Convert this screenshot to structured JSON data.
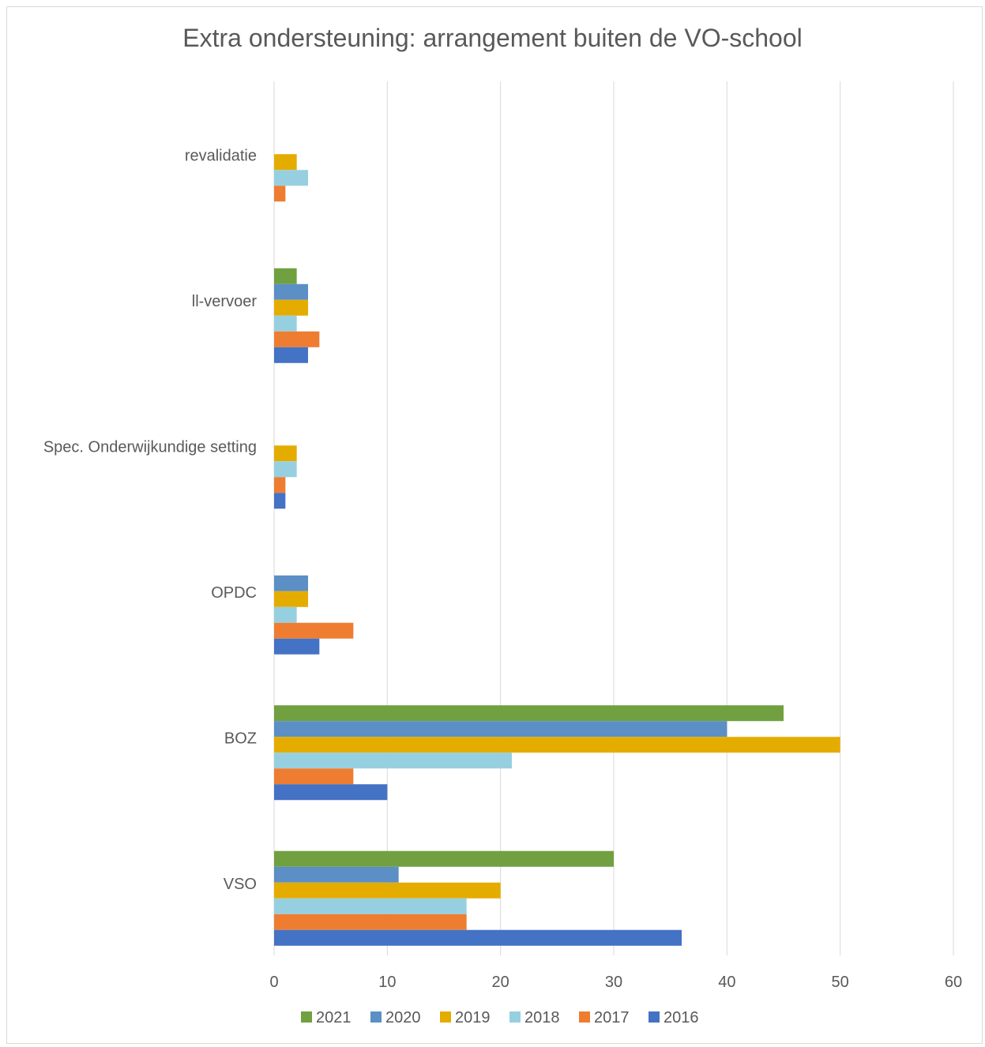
{
  "chart_data": {
    "type": "bar",
    "orientation": "horizontal",
    "title": "Extra ondersteuning: arrangement buiten de VO-school",
    "categories": [
      "revalidatie",
      "ll-vervoer",
      "Spec. Onderwijkundige setting",
      "OPDC",
      "BOZ",
      "VSO"
    ],
    "series": [
      {
        "name": "2021",
        "color": "#70a040",
        "values": [
          0,
          2,
          0,
          0,
          45,
          30
        ]
      },
      {
        "name": "2020",
        "color": "#5b8fc5",
        "values": [
          0,
          3,
          0,
          3,
          40,
          11
        ]
      },
      {
        "name": "2019",
        "color": "#e5ac00",
        "values": [
          2,
          3,
          2,
          3,
          50,
          20
        ]
      },
      {
        "name": "2018",
        "color": "#96d0e0",
        "values": [
          3,
          2,
          2,
          2,
          21,
          17
        ]
      },
      {
        "name": "2017",
        "color": "#ee7d31",
        "values": [
          1,
          4,
          1,
          7,
          7,
          17
        ]
      },
      {
        "name": "2016",
        "color": "#4472c4",
        "values": [
          0,
          3,
          1,
          4,
          10,
          36
        ]
      }
    ],
    "xlim": [
      0,
      60
    ],
    "xticks": [
      0,
      10,
      20,
      30,
      40,
      50,
      60
    ],
    "grid": true,
    "legend": "bottom"
  }
}
